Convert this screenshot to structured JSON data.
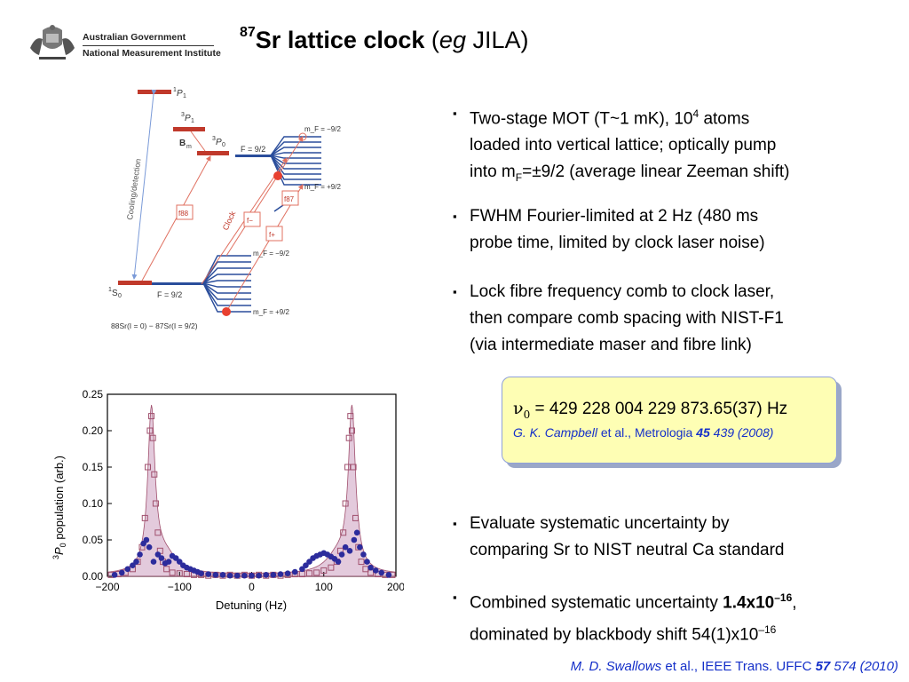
{
  "header": {
    "org_line1": "Australian Government",
    "org_line2": "National Measurement Institute",
    "title_sup": "87",
    "title_main": "Sr lattice clock",
    "title_open": "(",
    "title_italic": "eg",
    "title_rest": "JILA)"
  },
  "bullets": [
    {
      "l1a": "Two-stage MOT (T~1 mK), 10",
      "l1sup": "4",
      "l1b": " atoms",
      "l2": "loaded into vertical lattice; optically pump",
      "l3a": "into m",
      "l3sub": "F",
      "l3b": "=±9/2 (average linear Zeeman shift)"
    },
    {
      "l1": "FWHM Fourier-limited at 2 Hz (480 ms",
      "l2": "probe time, limited by clock laser noise)"
    },
    {
      "l1": "Lock fibre frequency comb to clock laser,",
      "l2": "then compare comb spacing with NIST-F1",
      "l3": "(via intermediate maser and fibre link)"
    },
    {
      "l1": "Evaluate systematic uncertainty by",
      "l2": "comparing Sr to NIST neutral Ca standard"
    },
    {
      "l1a": "Combined systematic uncertainty ",
      "l1bold": "1.4x10",
      "l1sup": "–16",
      "l1c": ",",
      "l2a": "dominated by blackbody shift 54(1)x10",
      "l2sup": "–16"
    }
  ],
  "bullet_glyph": "▪",
  "formula": {
    "nu": "ν",
    "sub": "0",
    "eq": " = 429 228 004 229 873.65(37) Hz",
    "ref_author": "G. K. Campbell",
    "ref_etal": " et al., Metrologia ",
    "ref_vol": "45",
    "ref_pages": " 439 (2008)"
  },
  "footer": {
    "author": "M. D. Swallows",
    "etal": " et al., IEEE Trans. UFFC ",
    "vol": "57",
    "pages": " 574 (2010)"
  },
  "level_diagram": {
    "p1": "1P1",
    "p1_label_main": "P",
    "p1_sup": "1",
    "p1_sub": "1",
    "p3_1_sup": "3",
    "p3_1_main": "P",
    "p3_1_sub": "1",
    "p3_0_sup": "3",
    "p3_0_main": "P",
    "p3_0_sub": "0",
    "s0_sup": "1",
    "s0_main": "S",
    "s0_sub": "0",
    "bm": "B",
    "bm_sub": "m",
    "f92_upper": "F = 9/2",
    "f92_lower": "F = 9/2",
    "mf_up_top": "m_F = −9/2",
    "mf_up_bot": "m_F = +9/2",
    "mf_lo_top": "m_F = −9/2",
    "mf_lo_bot": "m_F = +9/2",
    "cooling": "Cooling/detection",
    "clock": "Clock",
    "f88": "f88",
    "f87": "f87",
    "fminus": "f−",
    "fplus": "f+",
    "isotopes": "88Sr(I = 0) − 87Sr(I = 9/2)",
    "colors": {
      "red": "#c0392b",
      "blue": "#2a4d9b",
      "redline": "#e07060",
      "blueline": "#7a9ad8"
    }
  },
  "chart_data": {
    "type": "scatter",
    "xlabel": "Detuning (Hz)",
    "ylabel": "3P0 population (arb.)",
    "ylabel_sup": "3",
    "ylabel_main": "P",
    "ylabel_sub": "0",
    "ylabel_rest": " population (arb.)",
    "xlim": [
      -200,
      200
    ],
    "ylim": [
      0.0,
      0.25
    ],
    "xticks": [
      -200,
      -100,
      0,
      100,
      200
    ],
    "xtick_labels": [
      "−200",
      "−100",
      "0",
      "100",
      "200"
    ],
    "yticks": [
      0.0,
      0.05,
      0.1,
      0.15,
      0.2,
      0.25
    ],
    "ytick_labels": [
      "0.00",
      "0.05",
      "0.10",
      "0.15",
      "0.20",
      "0.25"
    ],
    "series": [
      {
        "marker": "open-square",
        "color": "#a0506e",
        "x": [
          -195,
          -185,
          -175,
          -165,
          -158,
          -152,
          -148,
          -144,
          -141,
          -139,
          -137,
          -135,
          -133,
          -130,
          -127,
          -123,
          -118,
          -110,
          -100,
          -90,
          -80,
          -70,
          -60,
          -50,
          -40,
          -30,
          -20,
          -10,
          0,
          10,
          20,
          30,
          40,
          50,
          60,
          70,
          80,
          90,
          100,
          110,
          118,
          123,
          127,
          130,
          133,
          135,
          137,
          139,
          141,
          144,
          148,
          152,
          158,
          165,
          175,
          185,
          195
        ],
        "y": [
          0.002,
          0.003,
          0.005,
          0.01,
          0.02,
          0.04,
          0.08,
          0.15,
          0.2,
          0.22,
          0.19,
          0.14,
          0.1,
          0.06,
          0.035,
          0.02,
          0.01,
          0.005,
          0.004,
          0.003,
          0.002,
          0.002,
          0.001,
          0.002,
          0.001,
          0.002,
          0.001,
          0.002,
          0.001,
          0.002,
          0.001,
          0.002,
          0.001,
          0.002,
          0.003,
          0.003,
          0.004,
          0.005,
          0.008,
          0.012,
          0.02,
          0.035,
          0.06,
          0.1,
          0.15,
          0.19,
          0.22,
          0.2,
          0.15,
          0.08,
          0.04,
          0.02,
          0.01,
          0.005,
          0.003,
          0.002,
          0.002
        ]
      },
      {
        "marker": "filled-circle",
        "color": "#2c2c9c",
        "x": [
          -190,
          -180,
          -172,
          -165,
          -160,
          -155,
          -150,
          -146,
          -142,
          -136,
          -130,
          -125,
          -120,
          -115,
          -110,
          -105,
          -100,
          -95,
          -90,
          -85,
          -80,
          -75,
          -70,
          -60,
          -50,
          -40,
          -30,
          -20,
          -10,
          0,
          10,
          20,
          30,
          40,
          50,
          60,
          70,
          75,
          80,
          85,
          90,
          95,
          100,
          105,
          110,
          115,
          120,
          125,
          130,
          136,
          142,
          146,
          150,
          155,
          160,
          165,
          172,
          180,
          190
        ],
        "y": [
          0.002,
          0.005,
          0.01,
          0.015,
          0.02,
          0.03,
          0.045,
          0.05,
          0.04,
          0.02,
          0.03,
          0.025,
          0.018,
          0.02,
          0.028,
          0.025,
          0.02,
          0.015,
          0.012,
          0.01,
          0.008,
          0.006,
          0.004,
          0.003,
          0.002,
          0.002,
          0.001,
          0.001,
          0.001,
          0.001,
          0.001,
          0.002,
          0.002,
          0.003,
          0.004,
          0.006,
          0.01,
          0.015,
          0.02,
          0.025,
          0.028,
          0.03,
          0.032,
          0.03,
          0.027,
          0.024,
          0.02,
          0.03,
          0.04,
          0.035,
          0.05,
          0.06,
          0.04,
          0.03,
          0.02,
          0.012,
          0.008,
          0.005,
          0.002
        ]
      }
    ],
    "fit_color": "#d9b8d0"
  }
}
